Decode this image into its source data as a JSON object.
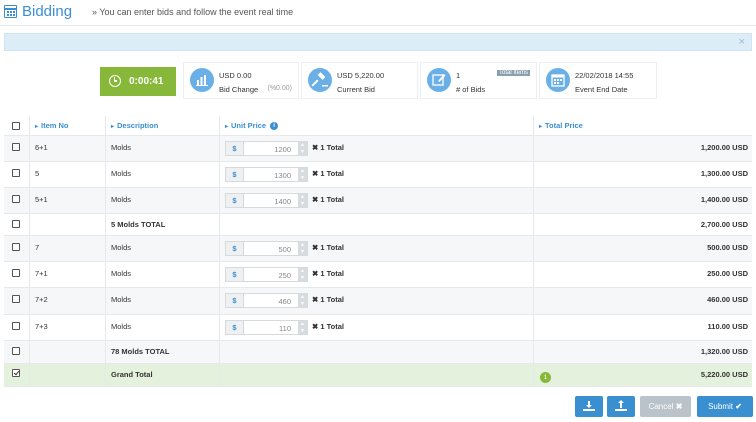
{
  "header": {
    "title": "Bidding",
    "subtitle": "» You can enter bids and follow the event real time"
  },
  "alert": {
    "close_glyph": "×"
  },
  "timer": {
    "value": "0:00:41"
  },
  "stats": [
    {
      "icon": "bar-chart-icon",
      "value": "USD 0.00",
      "label": "Bid Change",
      "extra": "(%0.00)"
    },
    {
      "icon": "gavel-icon",
      "value": "USD 5,220.00",
      "label": "Current Bid"
    },
    {
      "icon": "edit-icon",
      "value": "1",
      "label": "# of Bids",
      "tag": "Total Items"
    },
    {
      "icon": "calendar-icon",
      "value": "22/02/2018 14:55",
      "label": "Event End Date"
    }
  ],
  "table": {
    "headers": {
      "item_no": "Item No",
      "description": "Description",
      "unit_price": "Unit Price",
      "total_price": "Total Price"
    },
    "currency_symbol": "$",
    "rows": [
      {
        "item": "6+1",
        "desc": "Molds",
        "price": "1200",
        "qty": "✖ 1 Total",
        "total": "1,200.00 USD"
      },
      {
        "item": "5",
        "desc": "Molds",
        "price": "1300",
        "qty": "✖ 1 Total",
        "total": "1,300.00 USD"
      },
      {
        "item": "5+1",
        "desc": "Molds",
        "price": "1400",
        "qty": "✖ 1 Total",
        "total": "1,400.00 USD"
      },
      {
        "subtotal": "5 Molds TOTAL",
        "total": "2,700.00 USD"
      },
      {
        "item": "7",
        "desc": "Molds",
        "price": "500",
        "qty": "✖ 1 Total",
        "total": "500.00 USD"
      },
      {
        "item": "7+1",
        "desc": "Molds",
        "price": "250",
        "qty": "✖ 1 Total",
        "total": "250.00 USD"
      },
      {
        "item": "7+2",
        "desc": "Molds",
        "price": "460",
        "qty": "✖ 1 Total",
        "total": "460.00 USD"
      },
      {
        "item": "7+3",
        "desc": "Molds",
        "price": "110",
        "qty": "✖ 1 Total",
        "total": "110.00 USD"
      },
      {
        "subtotal": "78 Molds TOTAL",
        "total": "1,320.00 USD"
      }
    ],
    "grand": {
      "label": "Grand Total",
      "badge": "1",
      "total": "5,220.00 USD"
    }
  },
  "buttons": {
    "cancel": "Cancel",
    "submit": "Submit"
  }
}
